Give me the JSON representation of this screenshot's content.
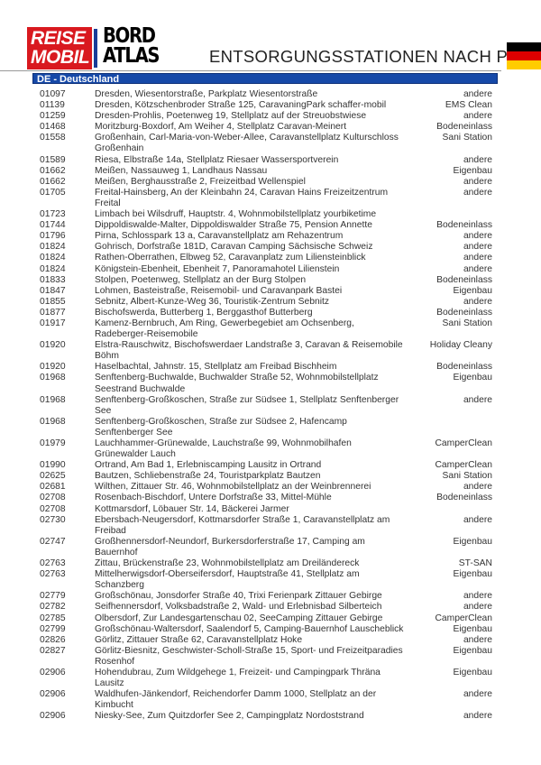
{
  "header": {
    "logo_reisemobil": "REISE MOBIL",
    "logo_bordatlas": "BORD ATLAS",
    "title": "ENTSORGUNGSSTATIONEN NACH PLZ",
    "flag_colors": [
      "#000000",
      "#dd0000",
      "#ffcc00"
    ]
  },
  "section": {
    "label": "DE - Deutschland",
    "color": "#1649a8"
  },
  "rows": [
    {
      "plz": "01097",
      "address": "Dresden, Wiesentorstraße, Parkplatz Wiesentorstraße",
      "type": "andere"
    },
    {
      "plz": "01139",
      "address": "Dresden, Kötzschenbroder Straße 125, CaravaningPark schaffer-mobil",
      "type": "EMS Clean"
    },
    {
      "plz": "01259",
      "address": "Dresden-Prohlis, Poetenweg 19, Stellplatz auf der Streuobstwiese",
      "type": "andere"
    },
    {
      "plz": "01468",
      "address": "Moritzburg-Boxdorf, Am Weiher 4, Stellplatz Caravan-Meinert",
      "type": "Bodeneinlass"
    },
    {
      "plz": "01558",
      "address": "Großenhain, Carl-Maria-von-Weber-Allee, Caravanstellplatz Kulturschloss Großenhain",
      "type": "Sani Station"
    },
    {
      "plz": "01589",
      "address": "Riesa, Elbstraße 14a, Stellplatz Riesaer Wassersportverein",
      "type": "andere"
    },
    {
      "plz": "01662",
      "address": "Meißen, Nassauweg 1, Landhaus Nassau",
      "type": "Eigenbau"
    },
    {
      "plz": "01662",
      "address": "Meißen, Berghausstraße 2, Freizeitbad Wellenspiel",
      "type": "andere"
    },
    {
      "plz": "01705",
      "address": "Freital-Hainsberg, An der Kleinbahn 24, Caravan Hains Freizeitzentrum Freital",
      "type": "andere"
    },
    {
      "plz": "01723",
      "address": "Limbach bei Wilsdruff, Hauptstr. 4, Wohnmobilstellplatz yourbiketime",
      "type": ""
    },
    {
      "plz": "01744",
      "address": "Dippoldiswalde-Malter, Dippoldiswalder Straße 75, Pension Annette",
      "type": "Bodeneinlass"
    },
    {
      "plz": "01796",
      "address": "Pirna, Schlosspark 13 a, Caravanstellplatz am Rehazentrum",
      "type": "andere"
    },
    {
      "plz": "01824",
      "address": "Gohrisch, Dorfstraße 181D, Caravan Camping Sächsische Schweiz",
      "type": "andere"
    },
    {
      "plz": "01824",
      "address": "Rathen-Oberrathen, Elbweg 52, Caravanplatz zum Liliensteinblick",
      "type": "andere"
    },
    {
      "plz": "01824",
      "address": "Königstein-Ebenheit, Ebenheit 7, Panoramahotel Lilienstein",
      "type": "andere"
    },
    {
      "plz": "01833",
      "address": "Stolpen, Poetenweg, Stellplatz an der Burg Stolpen",
      "type": "Bodeneinlass"
    },
    {
      "plz": "01847",
      "address": "Lohmen, Basteistraße, Reisemobil- und Caravanpark Bastei",
      "type": "Eigenbau"
    },
    {
      "plz": "01855",
      "address": "Sebnitz, Albert-Kunze-Weg 36, Touristik-Zentrum Sebnitz",
      "type": "andere"
    },
    {
      "plz": "01877",
      "address": "Bischofswerda, Butterberg 1, Berggasthof Butterberg",
      "type": "Bodeneinlass"
    },
    {
      "plz": "01917",
      "address": "Kamenz-Bernbruch, Am Ring, Gewerbegebiet am Ochsenberg, Radeberger-Reisemobile",
      "type": "Sani Station"
    },
    {
      "plz": "01920",
      "address": "Elstra-Rauschwitz, Bischofswerdaer Landstraße 3, Caravan & Reisemobile Böhm",
      "type": "Holiday Cleany"
    },
    {
      "plz": "01920",
      "address": "Haselbachtal, Jahnstr. 15, Stellplatz am Freibad Bischheim",
      "type": "Bodeneinlass"
    },
    {
      "plz": "01968",
      "address": "Senftenberg-Buchwalde, Buchwalder Straße 52, Wohnmobilstellplatz Seestrand Buchwalde",
      "type": "Eigenbau"
    },
    {
      "plz": "01968",
      "address": "Senftenberg-Großkoschen, Straße zur Südsee 1, Stellplatz Senftenberger See",
      "type": "andere"
    },
    {
      "plz": "01968",
      "address": "Senftenberg-Großkoschen, Straße zur Südsee 2, Hafencamp Senftenberger See",
      "type": ""
    },
    {
      "plz": "01979",
      "address": "Lauchhammer-Grünewalde, Lauchstraße 99, Wohnmobilhafen Grünewalder Lauch",
      "type": "CamperClean"
    },
    {
      "plz": "01990",
      "address": "Ortrand, Am Bad 1, Erlebniscamping Lausitz in Ortrand",
      "type": "CamperClean"
    },
    {
      "plz": "02625",
      "address": "Bautzen, Schliebenstraße 24, Touristparkplatz Bautzen",
      "type": "Sani Station"
    },
    {
      "plz": "02681",
      "address": "Wilthen, Zittauer Str. 46, Wohnmobilstellplatz an der Weinbrennerei",
      "type": "andere"
    },
    {
      "plz": "02708",
      "address": "Rosenbach-Bischdorf, Untere Dorfstraße 33, Mittel-Mühle",
      "type": "Bodeneinlass"
    },
    {
      "plz": "02708",
      "address": "Kottmarsdorf, Löbauer Str. 14, Bäckerei Jarmer",
      "type": ""
    },
    {
      "plz": "02730",
      "address": "Ebersbach-Neugersdorf, Kottmarsdorfer Straße 1, Caravanstellplatz am Freibad",
      "type": "andere"
    },
    {
      "plz": "02747",
      "address": "Großhennersdorf-Neundorf, Burkersdorferstraße 17, Camping am Bauernhof",
      "type": "Eigenbau"
    },
    {
      "plz": "02763",
      "address": "Zittau, Brückenstraße 23, Wohnmobilstellplatz am Dreiländereck",
      "type": "ST-SAN"
    },
    {
      "plz": "02763",
      "address": "Mittelherwigsdorf-Oberseifersdorf, Hauptstraße 41, Stellplatz am Schanzberg",
      "type": "Eigenbau"
    },
    {
      "plz": "02779",
      "address": "Großschönau, Jonsdorfer Straße 40, Trixi Ferienpark Zittauer Gebirge",
      "type": "andere"
    },
    {
      "plz": "02782",
      "address": "Seifhennersdorf, Volksbadstraße 2, Wald- und Erlebnisbad Silberteich",
      "type": "andere"
    },
    {
      "plz": "02785",
      "address": "Olbersdorf, Zur Landesgartenschau 02, SeeCamping Zittauer Gebirge",
      "type": "CamperClean"
    },
    {
      "plz": "02799",
      "address": "Großschönau-Waltersdorf, Saalendorf 5, Camping-Bauernhof Lauscheblick",
      "type": "Eigenbau"
    },
    {
      "plz": "02826",
      "address": "Görlitz, Zittauer Straße 62, Caravanstellplatz Hoke",
      "type": "andere"
    },
    {
      "plz": "02827",
      "address": "Görlitz-Biesnitz, Geschwister-Scholl-Straße 15, Sport- und Freizeitparadies Rosenhof",
      "type": "Eigenbau"
    },
    {
      "plz": "02906",
      "address": "Hohendubrau, Zum Wildgehege 1, Freizeit- und Campingpark Thräna Lausitz",
      "type": "Eigenbau"
    },
    {
      "plz": "02906",
      "address": "Waldhufen-Jänkendorf, Reichendorfer Damm 1000, Stellplatz an der Kimbucht",
      "type": "andere"
    },
    {
      "plz": "02906",
      "address": "Niesky-See, Zum Quitzdorfer See 2, Campingplatz Nordoststrand",
      "type": "andere"
    }
  ]
}
